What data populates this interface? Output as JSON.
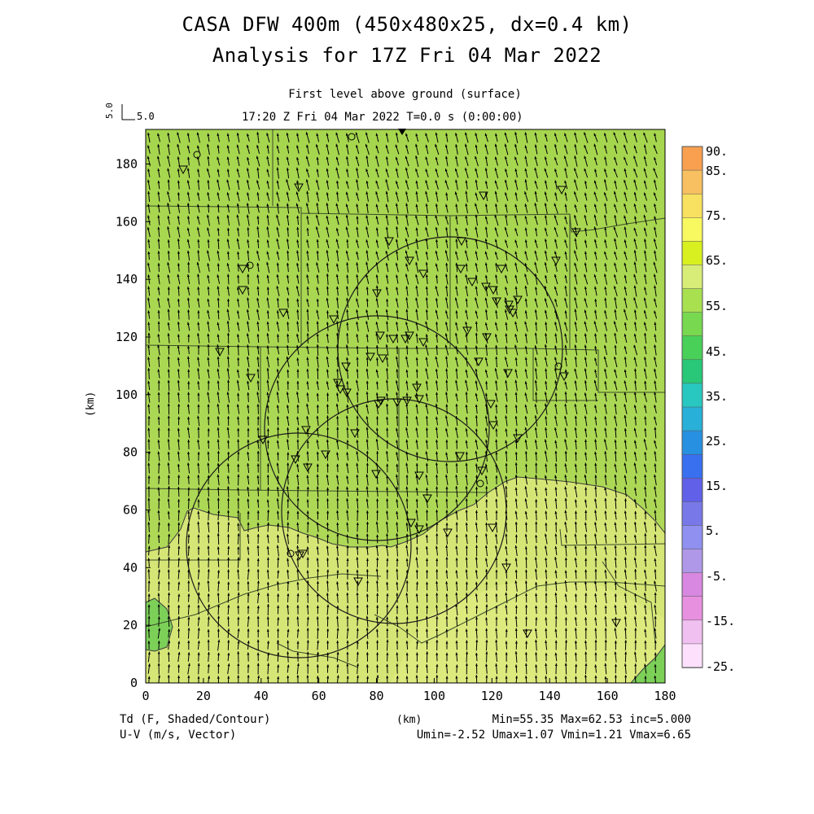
{
  "title": {
    "line1": "CASA DFW 400m (450x480x25, dx=0.4 km)",
    "line2": "Analysis for 17Z Fri 04 Mar 2022"
  },
  "subtitle": "First level above ground (surface)",
  "time_line": "17:20 Z Fri 04 Mar 2022    T=0.0 s (0:00:00)",
  "vector_ref": {
    "label": "5.0",
    "rotated_label": "5.0"
  },
  "axes": {
    "ylabel": "(km)",
    "xunit": "(km)",
    "x_ticks": [
      "0",
      "20",
      "40",
      "60",
      "80",
      "100",
      "120",
      "140",
      "160",
      "180"
    ],
    "y_ticks": [
      "0",
      "20",
      "40",
      "60",
      "80",
      "100",
      "120",
      "140",
      "160",
      "180"
    ]
  },
  "footer": {
    "left_line1": "Td (F, Shaded/Contour)",
    "left_line2": "U-V (m/s, Vector)",
    "right_line1": "Min=55.35 Max=62.53 inc=5.000",
    "right_line2": "Umin=-2.52 Umax=1.07 Vmin=1.21 Vmax=6.65"
  },
  "colorbar": {
    "labels": [
      "90.",
      "85.",
      "75.",
      "65.",
      "55.",
      "45.",
      "35.",
      "25.",
      "15.",
      "5.",
      "-5.",
      "-15.",
      "-25."
    ],
    "colors": [
      "#f8a050",
      "#f8c060",
      "#f8e060",
      "#f8f860",
      "#d8f020",
      "#d8ec78",
      "#a8e050",
      "#78d850",
      "#48d058",
      "#28c878",
      "#28c8c0",
      "#28b0d8",
      "#2890e0",
      "#3870f0",
      "#6060e8",
      "#7878e8",
      "#9090f0",
      "#b098e8",
      "#d888e0",
      "#e890e0",
      "#f0c0f0",
      "#fce0fc"
    ]
  },
  "colors": {
    "field_green": "#a8d850",
    "field_yellow": "#d8e878",
    "outline": "#303030"
  },
  "map_features": [
    "radar-range-rings",
    "county-boundaries",
    "station-markers",
    "wind-vectors"
  ]
}
